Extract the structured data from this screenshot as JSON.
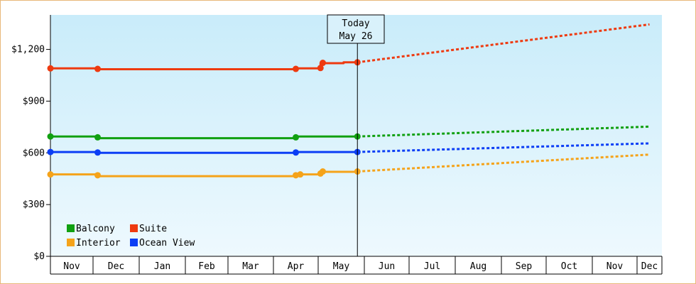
{
  "chart_data": {
    "type": "line",
    "title": "",
    "xlabel": "",
    "ylabel": "",
    "x_ticks": [
      "Nov",
      "Dec",
      "Jan",
      "Feb",
      "Mar",
      "Apr",
      "May",
      "Jun",
      "Jul",
      "Aug",
      "Sep",
      "Oct",
      "Nov",
      "Dec"
    ],
    "y_ticks": [
      "$0",
      "$300",
      "$600",
      "$900",
      "$1,200"
    ],
    "ylim": [
      0,
      1400
    ],
    "grid": false,
    "legend_position": "bottom-left",
    "today_marker": {
      "line1": "Today",
      "line2": "May 26",
      "x": 6.85
    },
    "series": [
      {
        "name": "Suite",
        "color": "#ee3a10",
        "points": [
          [
            0,
            1090
          ],
          [
            1.1,
            1090
          ],
          [
            1.1,
            1085
          ],
          [
            5.5,
            1085
          ],
          [
            5.5,
            1090
          ],
          [
            6.05,
            1090
          ],
          [
            6.05,
            1120
          ],
          [
            6.55,
            1120
          ],
          [
            6.55,
            1125
          ],
          [
            6.85,
            1125
          ]
        ],
        "markers": [
          [
            0,
            1090
          ],
          [
            1.1,
            1087
          ],
          [
            5.5,
            1087
          ],
          [
            6.05,
            1092
          ],
          [
            6.1,
            1122
          ],
          [
            6.85,
            1125
          ]
        ],
        "forecast": [
          [
            6.85,
            1125
          ],
          [
            13.5,
            1345
          ]
        ]
      },
      {
        "name": "Balcony",
        "color": "#11a011",
        "points": [
          [
            0,
            695
          ],
          [
            1.1,
            695
          ],
          [
            1.1,
            685
          ],
          [
            5.5,
            685
          ],
          [
            5.5,
            695
          ],
          [
            6.85,
            695
          ]
        ],
        "markers": [
          [
            0,
            695
          ],
          [
            1.1,
            690
          ],
          [
            5.5,
            690
          ],
          [
            6.85,
            695
          ]
        ],
        "forecast": [
          [
            6.85,
            695
          ],
          [
            13.5,
            752
          ]
        ]
      },
      {
        "name": "Ocean View",
        "color": "#0b3ef5",
        "points": [
          [
            0,
            605
          ],
          [
            1.1,
            605
          ],
          [
            1.1,
            600
          ],
          [
            5.5,
            600
          ],
          [
            5.5,
            605
          ],
          [
            6.85,
            605
          ]
        ],
        "markers": [
          [
            0,
            605
          ],
          [
            1.1,
            602
          ],
          [
            5.5,
            602
          ],
          [
            6.85,
            605
          ]
        ],
        "forecast": [
          [
            6.85,
            605
          ],
          [
            13.5,
            655
          ]
        ]
      },
      {
        "name": "Interior",
        "color": "#f5a31a",
        "points": [
          [
            0,
            475
          ],
          [
            1.1,
            475
          ],
          [
            1.1,
            465
          ],
          [
            5.5,
            465
          ],
          [
            5.5,
            475
          ],
          [
            6.05,
            475
          ],
          [
            6.05,
            490
          ],
          [
            6.85,
            490
          ]
        ],
        "markers": [
          [
            0,
            475
          ],
          [
            1.1,
            470
          ],
          [
            5.5,
            470
          ],
          [
            5.6,
            475
          ],
          [
            6.05,
            480
          ],
          [
            6.1,
            492
          ],
          [
            6.85,
            492
          ]
        ],
        "forecast": [
          [
            6.85,
            492
          ],
          [
            13.5,
            590
          ]
        ]
      }
    ],
    "legend": [
      {
        "name": "Balcony",
        "color": "#11a011"
      },
      {
        "name": "Suite",
        "color": "#ee3a10"
      },
      {
        "name": "Interior",
        "color": "#f5a31a"
      },
      {
        "name": "Ocean View",
        "color": "#0b3ef5"
      }
    ]
  }
}
